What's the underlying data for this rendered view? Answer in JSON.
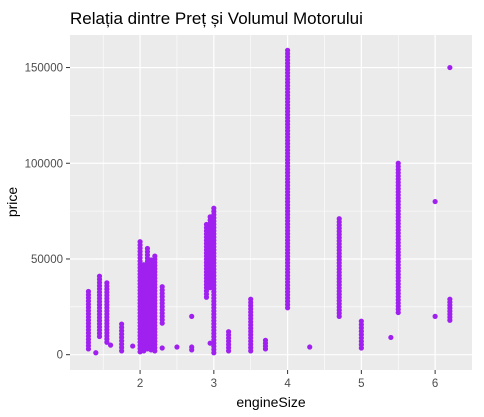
{
  "chart_data": {
    "type": "scatter",
    "title": "Relația dintre Preț și Volumul Motorului",
    "xlabel": "engineSize",
    "ylabel": "price",
    "xlim": [
      1.05,
      6.5
    ],
    "ylim": [
      -8000,
      167000
    ],
    "x_ticks": [
      2,
      3,
      4,
      5,
      6
    ],
    "y_ticks": [
      0,
      50000,
      100000,
      150000
    ],
    "y_tick_labels": [
      "0",
      "50000",
      "100000",
      "150000"
    ],
    "grid": true,
    "legend": "none",
    "point_color": "#A020F0",
    "panel_background": "#EBEBEB",
    "grid_color": "#FFFFFF",
    "columns": [
      {
        "x": 1.3,
        "y_min": 3000,
        "y_max": 33000
      },
      {
        "x": 1.4,
        "y_min": 1000,
        "y_max": 1000
      },
      {
        "x": 1.45,
        "y_min": 9500,
        "y_max": 41000
      },
      {
        "x": 1.55,
        "y_min": 6500,
        "y_max": 37500
      },
      {
        "x": 1.6,
        "y_min": 5000,
        "y_max": 5000
      },
      {
        "x": 1.75,
        "y_min": 2000,
        "y_max": 16000
      },
      {
        "x": 1.9,
        "y_min": 4500,
        "y_max": 4500
      },
      {
        "x": 2.0,
        "y_min": 1500,
        "y_max": 59000
      },
      {
        "x": 2.05,
        "y_min": 2000,
        "y_max": 47000
      },
      {
        "x": 2.1,
        "y_min": 3000,
        "y_max": 55500
      },
      {
        "x": 2.15,
        "y_min": 2500,
        "y_max": 49500
      },
      {
        "x": 2.2,
        "y_min": 2000,
        "y_max": 51500
      },
      {
        "x": 2.3,
        "y_min": 16500,
        "y_max": 35500
      },
      {
        "x": 2.3,
        "y_min": 3500,
        "y_max": 3500
      },
      {
        "x": 2.5,
        "y_min": 4000,
        "y_max": 4000
      },
      {
        "x": 2.7,
        "y_min": 20000,
        "y_max": 20000
      },
      {
        "x": 2.7,
        "y_min": 2500,
        "y_max": 4000
      },
      {
        "x": 2.9,
        "y_min": 30000,
        "y_max": 68000
      },
      {
        "x": 2.95,
        "y_min": 6000,
        "y_max": 6000
      },
      {
        "x": 2.95,
        "y_min": 35000,
        "y_max": 72000
      },
      {
        "x": 3.0,
        "y_min": 1000,
        "y_max": 76500
      },
      {
        "x": 3.2,
        "y_min": 2000,
        "y_max": 12000
      },
      {
        "x": 3.5,
        "y_min": 2000,
        "y_max": 29000
      },
      {
        "x": 3.7,
        "y_min": 3000,
        "y_max": 7500
      },
      {
        "x": 4.0,
        "y_min": 24500,
        "y_max": 159000
      },
      {
        "x": 4.3,
        "y_min": 4000,
        "y_max": 4000
      },
      {
        "x": 4.7,
        "y_min": 20000,
        "y_max": 71000
      },
      {
        "x": 5.0,
        "y_min": 3500,
        "y_max": 17500
      },
      {
        "x": 5.4,
        "y_min": 9000,
        "y_max": 9000
      },
      {
        "x": 5.5,
        "y_min": 22000,
        "y_max": 100000
      },
      {
        "x": 6.0,
        "y_min": 20000,
        "y_max": 20000
      },
      {
        "x": 6.0,
        "y_min": 80000,
        "y_max": 80000
      },
      {
        "x": 6.2,
        "y_min": 18000,
        "y_max": 29000
      },
      {
        "x": 6.2,
        "y_min": 150000,
        "y_max": 150000
      }
    ]
  }
}
